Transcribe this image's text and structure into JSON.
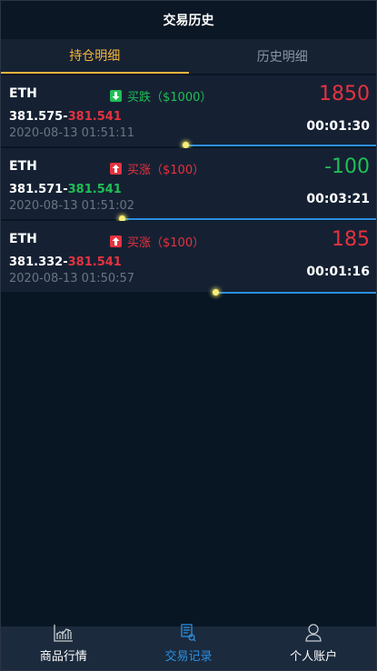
{
  "header": {
    "title": "交易历史"
  },
  "tabs": [
    {
      "label": "持仓明细",
      "active": true
    },
    {
      "label": "历史明细",
      "active": false
    }
  ],
  "orders": [
    {
      "symbol": "ETH",
      "direction": "买跌（$1000）",
      "direction_color": "#1fbf55",
      "arrow": "arrow-down-icon",
      "open_price": "381.575",
      "close_price": "381.541",
      "close_color": "#e5323f",
      "timestamp": "2020-08-13 01:51:11",
      "pnl": "1850",
      "pnl_color": "#e5323f",
      "duration": "00:01:30",
      "progress": 0.49
    },
    {
      "symbol": "ETH",
      "direction": "买涨（$100）",
      "direction_color": "#e5323f",
      "arrow": "arrow-up-icon",
      "open_price": "381.571",
      "close_price": "381.541",
      "close_color": "#1fbf55",
      "timestamp": "2020-08-13 01:51:02",
      "pnl": "-100",
      "pnl_color": "#1fbf55",
      "duration": "00:03:21",
      "progress": 0.32
    },
    {
      "symbol": "ETH",
      "direction": "买涨（$100）",
      "direction_color": "#e5323f",
      "arrow": "arrow-up-icon",
      "open_price": "381.332",
      "close_price": "381.541",
      "close_color": "#e5323f",
      "timestamp": "2020-08-13 01:50:57",
      "pnl": "185",
      "pnl_color": "#e5323f",
      "duration": "00:01:16",
      "progress": 0.57
    }
  ],
  "bottom_nav": [
    {
      "label": "商品行情",
      "icon": "chart-icon",
      "active": false
    },
    {
      "label": "交易记录",
      "icon": "document-icon",
      "active": true
    },
    {
      "label": "个人账户",
      "icon": "person-icon",
      "active": false
    }
  ]
}
